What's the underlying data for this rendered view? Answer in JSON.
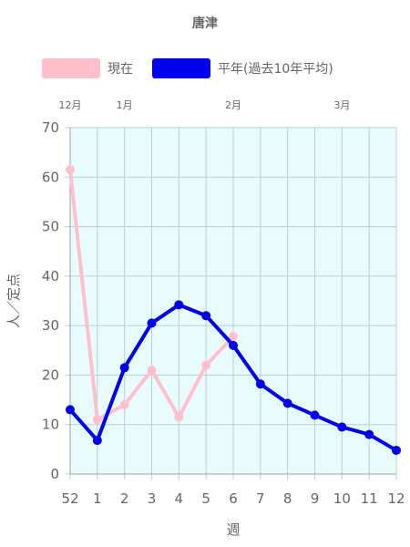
{
  "chart_data": {
    "type": "line",
    "title": "唐津",
    "xlabel": "週",
    "ylabel": "人／定点",
    "categories": [
      "52",
      "1",
      "2",
      "3",
      "4",
      "5",
      "6",
      "7",
      "8",
      "9",
      "10",
      "11",
      "12"
    ],
    "month_labels": [
      {
        "label": "12月",
        "at": "52"
      },
      {
        "label": "1月",
        "at": "2"
      },
      {
        "label": "2月",
        "at": "6"
      },
      {
        "label": "3月",
        "at": "10"
      }
    ],
    "ylim": [
      0,
      70
    ],
    "yticks": [
      0,
      10,
      20,
      30,
      40,
      50,
      60,
      70
    ],
    "grid": true,
    "legend_position": "top",
    "plot_background": "#e8fcfd",
    "series": [
      {
        "name": "現在",
        "color": "#ffc0cb",
        "values": [
          61.5,
          11,
          14,
          21,
          11.5,
          22,
          27.8,
          null,
          null,
          null,
          null,
          null,
          null
        ]
      },
      {
        "name": "平年(過去10年平均)",
        "color": "#0000ee",
        "values": [
          13,
          6.8,
          21.5,
          30.5,
          34.2,
          32,
          26,
          18.2,
          14.3,
          11.9,
          9.5,
          8,
          4.8
        ]
      }
    ]
  }
}
